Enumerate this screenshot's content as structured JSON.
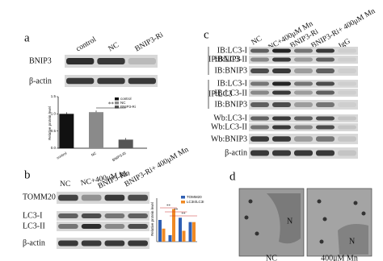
{
  "panel_a": {
    "label": "a",
    "lanes": [
      "control",
      "NC",
      "BNIP3-Ri"
    ],
    "rows": [
      "BNIP3",
      "β-actin"
    ],
    "chart": {
      "type": "bar",
      "ylabel": "Relative protein level",
      "categories": [
        "control",
        "NC",
        "BNIP3-Ri"
      ],
      "values": [
        1.0,
        1.05,
        0.25
      ],
      "colors": [
        "#111111",
        "#8a8a8a",
        "#555555"
      ],
      "ylim": [
        0,
        1.5
      ],
      "yticks": [
        {
          "value": 0,
          "label": "0.0"
        },
        {
          "value": 0.5,
          "label": "0.5"
        },
        {
          "value": 1,
          "label": "1.0"
        },
        {
          "value": 1.5,
          "label": "1.5"
        }
      ],
      "significance": "**"
    }
  },
  "panel_b": {
    "label": "b",
    "lanes": [
      "NC",
      "NC+400μM Mn",
      "BNIP3-Ri",
      "BNIP3-Ri+ 400μM Mn"
    ],
    "rows": [
      "TOMM20",
      "LC3-I",
      "LC3-II",
      "β-actin"
    ],
    "chart": {
      "type": "bar",
      "ylabel": "Relative protein level",
      "categories": [
        null,
        null,
        null,
        null
      ],
      "series": [
        {
          "name": "TOMM20",
          "color": "#2f5fb3",
          "values": [
            1.0,
            0.3,
            1.1,
            0.9
          ]
        },
        {
          "name": "LC3II/LC3I",
          "color": "#f08a24",
          "values": [
            0.6,
            1.5,
            0.5,
            0.9
          ]
        }
      ],
      "ylim": [
        0,
        2
      ],
      "significance": [
        "**",
        "**",
        "**"
      ]
    }
  },
  "panel_c": {
    "label": "c",
    "lanes": [
      "NC",
      "NC+400μM Mn",
      "BNIP3-Ri",
      "BNIP3-Ri+ 400μM Mn",
      "IgG"
    ],
    "groups": [
      {
        "name": "IP:BNIP3",
        "rows": [
          "IB:LC3-I",
          "IB:LC3-II",
          "IB:BNIP3"
        ]
      },
      {
        "name": "IP:LC3",
        "rows": [
          "IB:LC3-I",
          "IB:LC3-II",
          "IB:BNIP3"
        ]
      }
    ],
    "wb_rows": [
      "Wb:LC3-I",
      "Wb:LC3-II",
      "Wb:BNIP3",
      "β-actin"
    ]
  },
  "panel_d": {
    "label": "d",
    "images": [
      {
        "caption": "NC",
        "marker": "N"
      },
      {
        "caption": "400μM Mn",
        "marker": "N"
      }
    ]
  }
}
